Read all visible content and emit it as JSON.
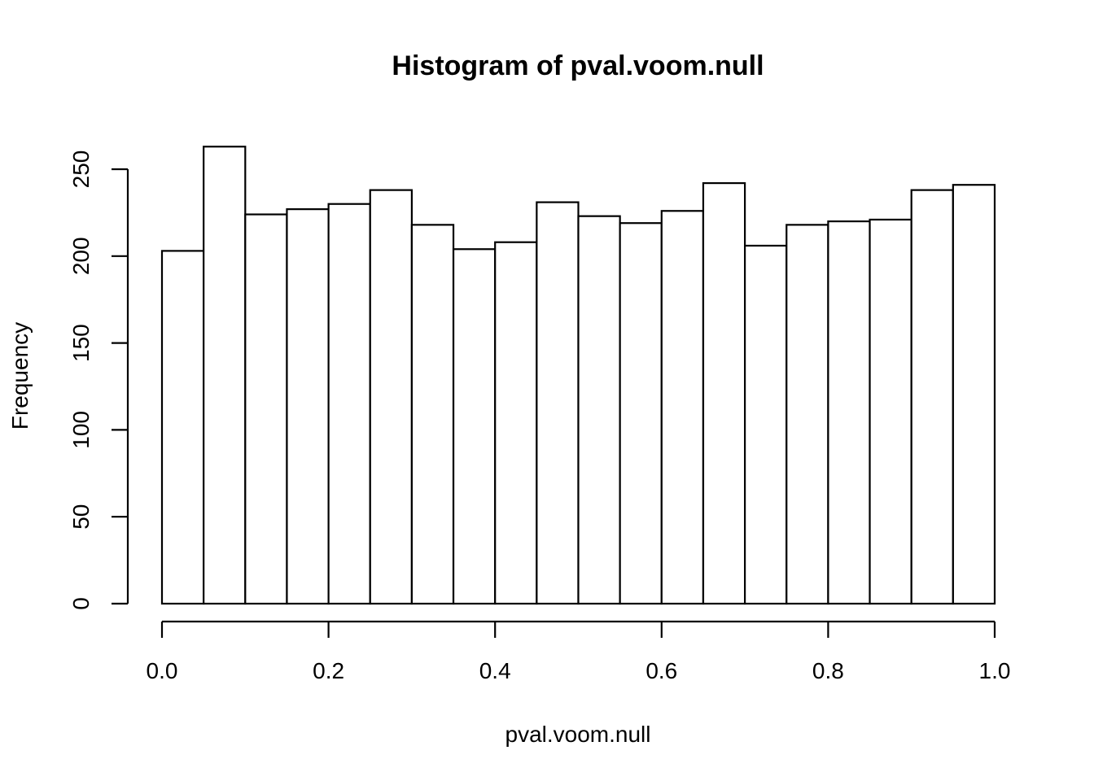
{
  "chart_data": {
    "type": "bar",
    "subtype": "histogram",
    "title": "Histogram of pval.voom.null",
    "xlabel": "pval.voom.null",
    "ylabel": "Frequency",
    "bin_edges": [
      0.0,
      0.05,
      0.1,
      0.15,
      0.2,
      0.25,
      0.3,
      0.35,
      0.4,
      0.45,
      0.5,
      0.55,
      0.6,
      0.65,
      0.7,
      0.75,
      0.8,
      0.85,
      0.9,
      0.95,
      1.0
    ],
    "values": [
      203,
      263,
      224,
      227,
      230,
      238,
      218,
      204,
      208,
      231,
      223,
      219,
      226,
      242,
      206,
      218,
      220,
      221,
      238,
      241
    ],
    "xlim": [
      0.0,
      1.0
    ],
    "ylim": [
      0,
      250
    ],
    "x_ticks": [
      {
        "value": 0.0,
        "label": "0.0"
      },
      {
        "value": 0.2,
        "label": "0.2"
      },
      {
        "value": 0.4,
        "label": "0.4"
      },
      {
        "value": 0.6,
        "label": "0.6"
      },
      {
        "value": 0.8,
        "label": "0.8"
      },
      {
        "value": 1.0,
        "label": "1.0"
      }
    ],
    "y_ticks": [
      {
        "value": 0,
        "label": "0"
      },
      {
        "value": 50,
        "label": "50"
      },
      {
        "value": 100,
        "label": "100"
      },
      {
        "value": 150,
        "label": "150"
      },
      {
        "value": 200,
        "label": "200"
      },
      {
        "value": 250,
        "label": "250"
      }
    ],
    "grid": false,
    "colors": {
      "bar_fill": "#ffffff",
      "bar_stroke": "#000000"
    }
  }
}
